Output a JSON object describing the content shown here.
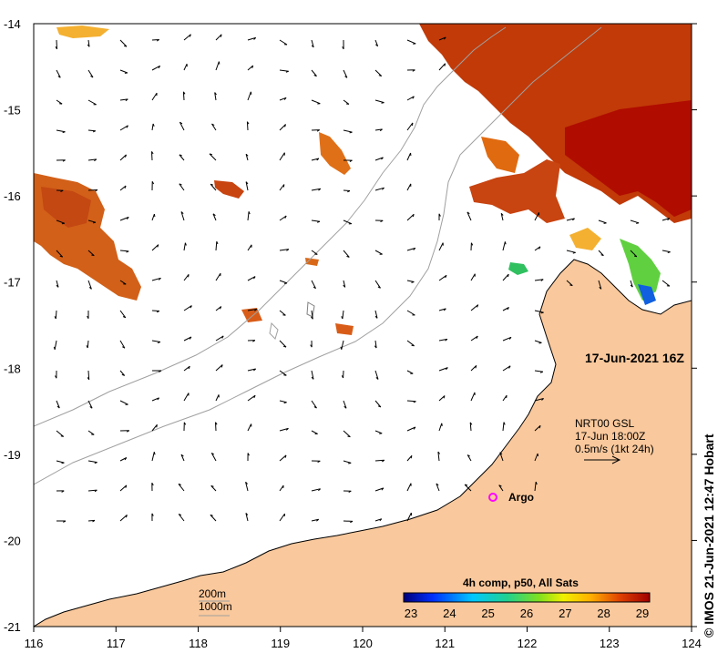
{
  "map": {
    "lat_labels": [
      "-14",
      "-15",
      "-16",
      "-17",
      "-18",
      "-19",
      "-20",
      "-21"
    ],
    "lon_labels": [
      "116",
      "117",
      "118",
      "119",
      "120",
      "121",
      "122",
      "123",
      "124"
    ],
    "date_label": "17-Jun-2021 16Z",
    "current_legend": {
      "line1": "NRT00 GSL",
      "line2": "17-Jun 18:00Z",
      "line3": "0.5m/s (1kt 24h)"
    },
    "argo_label": "Argo",
    "depth_legend": {
      "contour1": "200m",
      "contour2": "1000m"
    },
    "colorbar": {
      "title": "4h comp, p50, All Sats",
      "ticks": [
        "23",
        "24",
        "25",
        "26",
        "27",
        "28",
        "29"
      ]
    },
    "credit": "© IMOS 21-Jun-2021 12:47 Hobart",
    "colors": {
      "land": "#f9c89c",
      "sst_warm": "#c83000",
      "sst_hot": "#b01000",
      "sst_mid": "#e06a10",
      "argo": "#ff00ff"
    }
  }
}
